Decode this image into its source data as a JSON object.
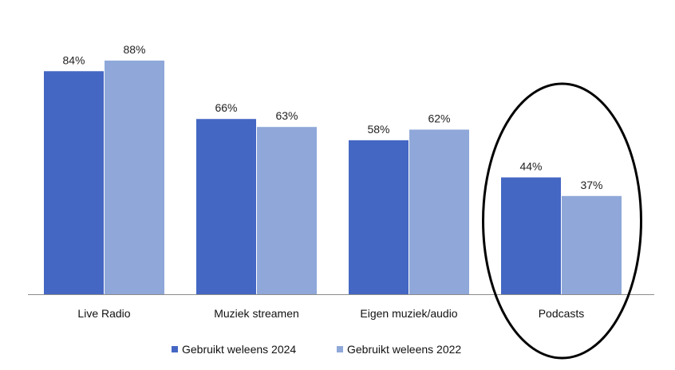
{
  "chart_data": {
    "type": "bar",
    "categories": [
      "Live Radio",
      "Muziek streamen",
      "Eigen muziek/audio",
      "Podcasts"
    ],
    "series": [
      {
        "name": "Gebruikt weleens 2024",
        "values": [
          84,
          66,
          58,
          44
        ],
        "labels": [
          "84%",
          "66%",
          "58%",
          "44%"
        ],
        "color": "#4467c4"
      },
      {
        "name": "Gebruikt weleens 2022",
        "values": [
          88,
          63,
          62,
          37
        ],
        "labels": [
          "88%",
          "63%",
          "62%",
          "37%"
        ],
        "color": "#8fa8d9"
      }
    ],
    "ylim": [
      0,
      100
    ],
    "grid": false,
    "legend_position": "bottom-center",
    "highlight": {
      "category": "Podcasts",
      "shape": "ellipse",
      "color": "#000000"
    }
  }
}
